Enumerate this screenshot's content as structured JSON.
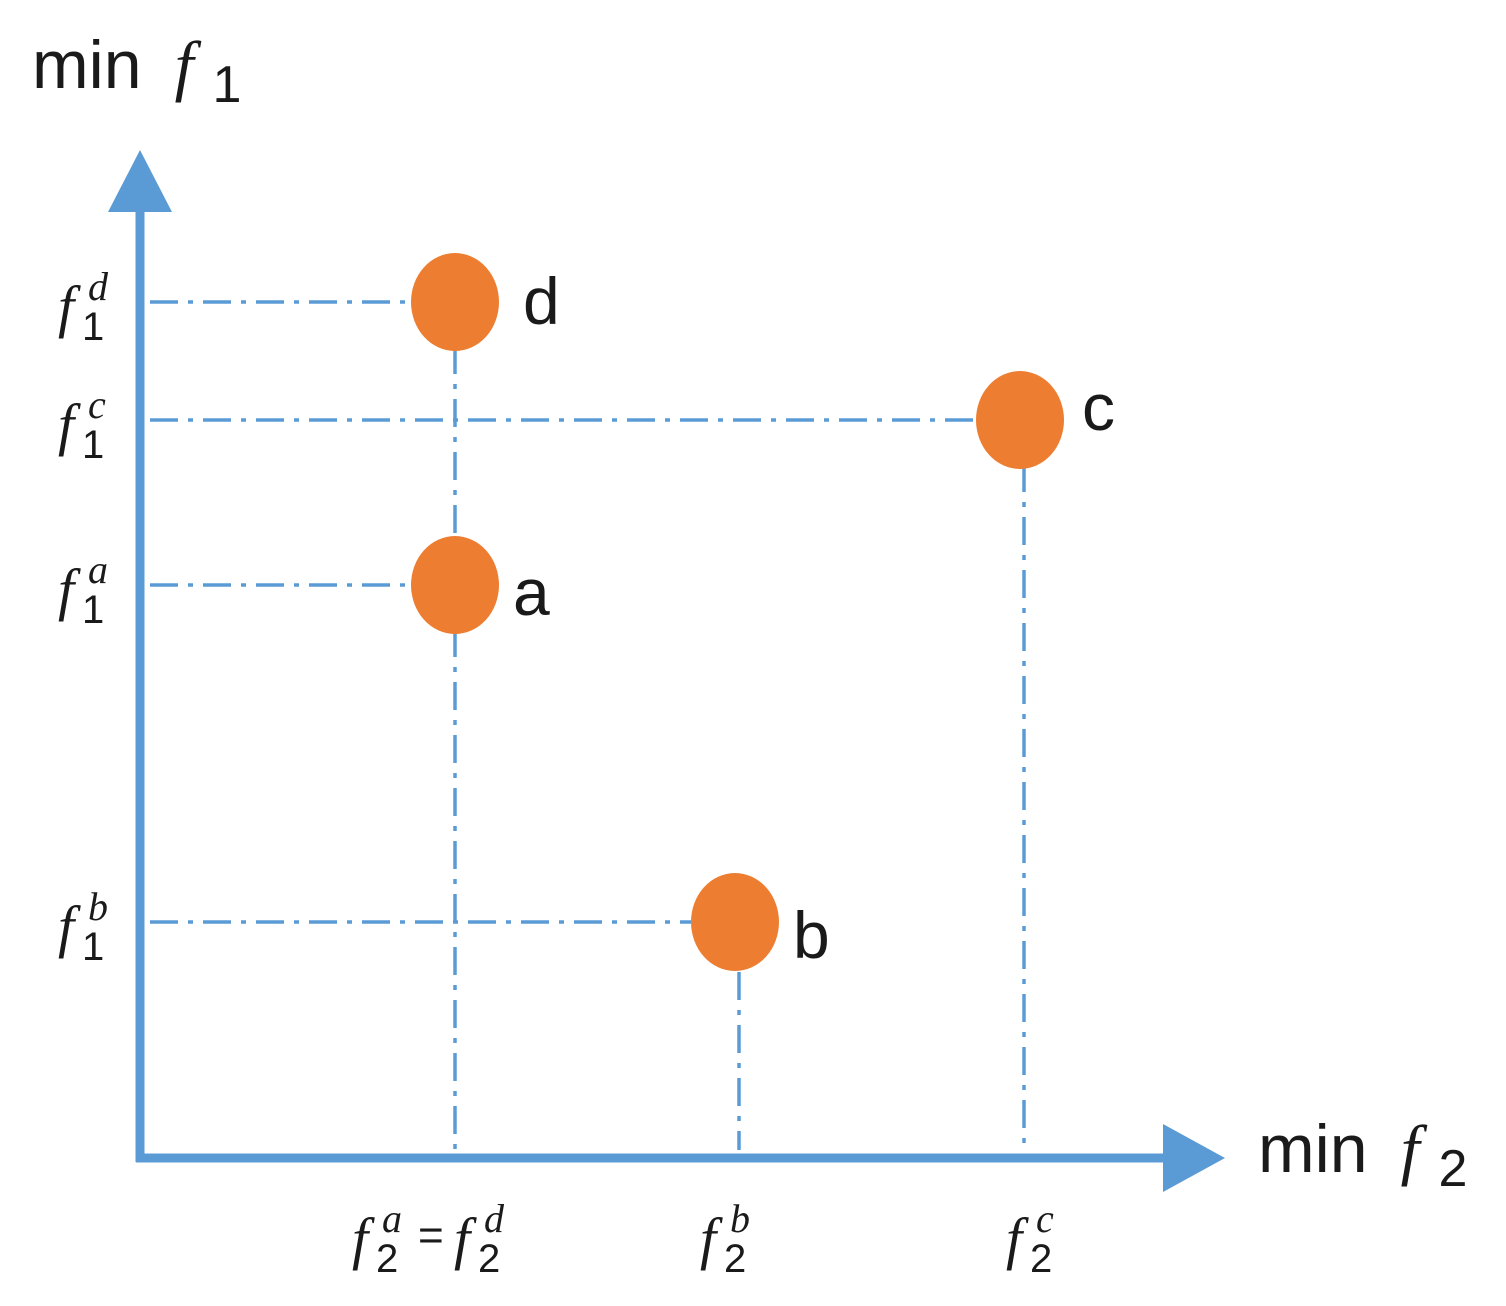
{
  "axes": {
    "y_label": {
      "prefix": "min",
      "fn": "f",
      "sub": "1"
    },
    "x_label": {
      "prefix": "min",
      "fn": "f",
      "sub": "2"
    }
  },
  "points": [
    {
      "id": "d",
      "label": "d"
    },
    {
      "id": "c",
      "label": "c"
    },
    {
      "id": "a",
      "label": "a"
    },
    {
      "id": "b",
      "label": "b"
    }
  ],
  "y_ticks": [
    {
      "point": "d",
      "fn": "f",
      "sub": "1",
      "sup": "d"
    },
    {
      "point": "c",
      "fn": "f",
      "sub": "1",
      "sup": "c"
    },
    {
      "point": "a",
      "fn": "f",
      "sub": "1",
      "sup": "a"
    },
    {
      "point": "b",
      "fn": "f",
      "sub": "1",
      "sup": "b"
    }
  ],
  "x_ticks": [
    {
      "points": [
        "a",
        "d"
      ],
      "parts": [
        {
          "fn": "f",
          "sub": "2",
          "sup": "a"
        },
        {
          "sep": "="
        },
        {
          "fn": "f",
          "sub": "2",
          "sup": "d"
        }
      ]
    },
    {
      "points": [
        "b"
      ],
      "parts": [
        {
          "fn": "f",
          "sub": "2",
          "sup": "b"
        }
      ]
    },
    {
      "points": [
        "c"
      ],
      "parts": [
        {
          "fn": "f",
          "sub": "2",
          "sup": "c"
        }
      ]
    }
  ],
  "colors": {
    "axis": "#5b9bd5",
    "guide": "#5b9bd5",
    "point": "#ed7d31",
    "text": "#1a1a1a"
  }
}
